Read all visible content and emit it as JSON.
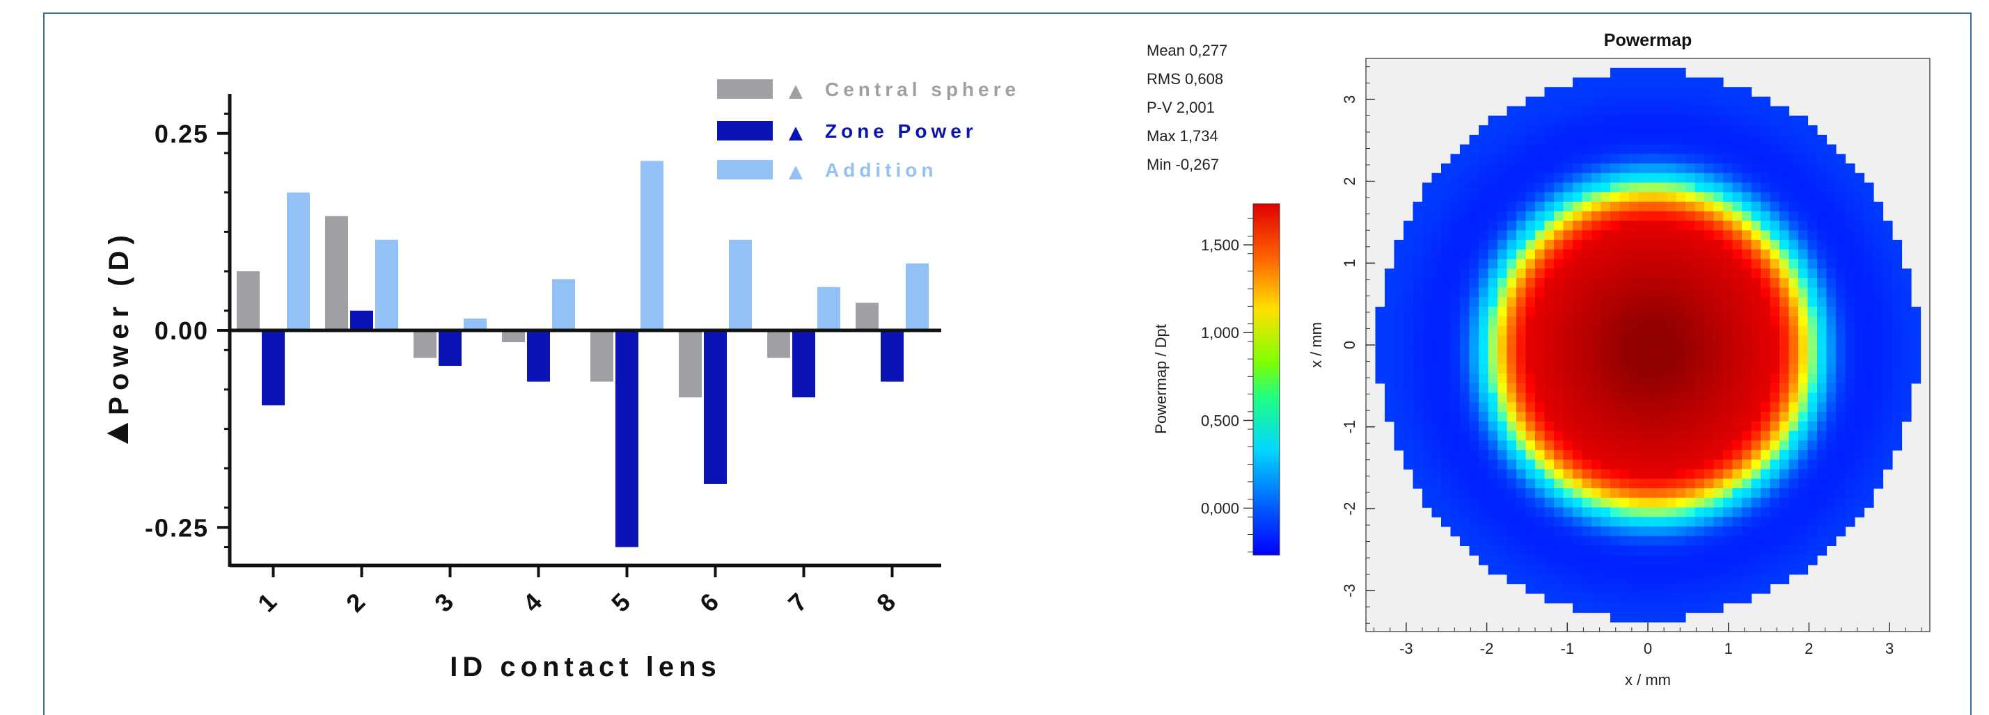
{
  "colors": {
    "central": "#a0a0a4",
    "zone": "#0a14b4",
    "addition": "#93c1f5",
    "axis": "#111111",
    "frame": "#3d6b8f"
  },
  "chart_data": [
    {
      "type": "bar",
      "xlabel": "ID contact lens",
      "ylabel_symbol": "▲",
      "ylabel": "Power (D)",
      "categories": [
        "1",
        "2",
        "3",
        "4",
        "5",
        "6",
        "7",
        "8"
      ],
      "ylim": [
        -0.3,
        0.3
      ],
      "yticks": [
        0.25,
        0.0,
        -0.25
      ],
      "ytick_labels": [
        "0.25",
        "0.00",
        "-0.25"
      ],
      "legend_position": "top-right",
      "series": [
        {
          "name": "Central sphere",
          "key": "central",
          "values": [
            0.075,
            0.145,
            -0.035,
            -0.015,
            -0.065,
            -0.085,
            -0.035,
            0.035
          ]
        },
        {
          "name": "Zone Power",
          "key": "zone",
          "values": [
            -0.095,
            0.025,
            -0.045,
            -0.065,
            -0.275,
            -0.195,
            -0.085,
            -0.065
          ]
        },
        {
          "name": "Addition",
          "key": "addition",
          "values": [
            0.175,
            0.115,
            0.015,
            0.065,
            0.215,
            0.115,
            0.055,
            0.085
          ]
        }
      ],
      "legend_symbol": "▲"
    },
    {
      "type": "heatmap",
      "title": "Powermap",
      "xlabel": "x / mm",
      "ylabel": "x / mm",
      "xticks": [
        -3,
        -2,
        -1,
        0,
        1,
        2,
        3
      ],
      "yticks": [
        3,
        2,
        1,
        0,
        -1,
        -2,
        -3
      ],
      "xlim": [
        -3.5,
        3.5
      ],
      "ylim": [
        -3.5,
        3.5
      ],
      "colorbar": {
        "label": "Powermap / Dpt",
        "ticks": [
          "1,500",
          "1,000",
          "0,500",
          "0,000"
        ],
        "tick_values": [
          1.5,
          1.0,
          0.5,
          0.0
        ],
        "range": [
          -0.267,
          1.734
        ]
      },
      "stats": [
        {
          "label": "Mean",
          "value": "0,277"
        },
        {
          "label": "RMS",
          "value": "0,608"
        },
        {
          "label": "P-V",
          "value": "2,001"
        },
        {
          "label": "Max",
          "value": "1,734"
        },
        {
          "label": "Min",
          "value": "-0,267"
        }
      ],
      "map_model": {
        "aperture_radius_mm": 3.35,
        "zone_peak_radius_mm": 0.0,
        "center_value": 1.65,
        "ring_value": 1.1,
        "ring_radius_mm": 1.7,
        "outer_value": 0.1
      }
    }
  ]
}
